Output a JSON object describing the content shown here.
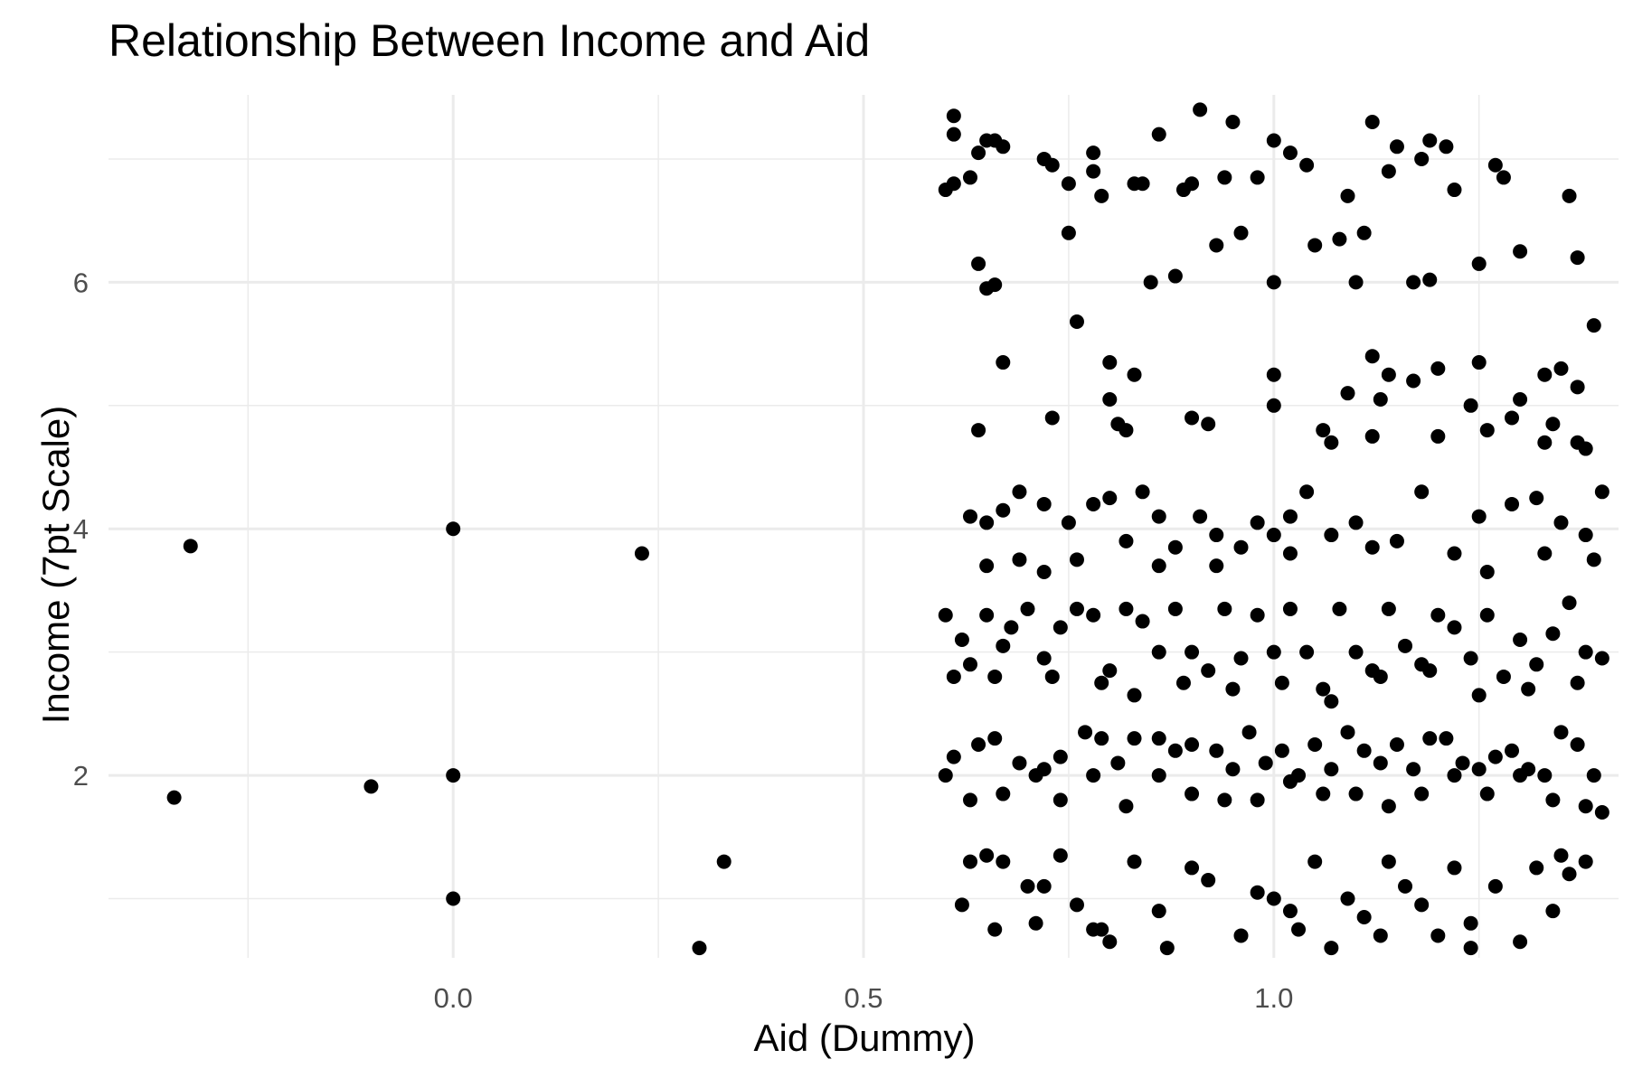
{
  "chart_data": {
    "type": "scatter",
    "title": "Relationship Between Income and Aid",
    "xlabel": "Aid (Dummy)",
    "ylabel": "Income (7pt Scale)",
    "xlim": [
      -0.42,
      1.42
    ],
    "ylim": [
      0.52,
      7.52
    ],
    "x_ticks": [
      0.0,
      0.5,
      1.0
    ],
    "x_tick_labels": [
      "0.0",
      "0.5",
      "1.0"
    ],
    "y_ticks": [
      2,
      4,
      6
    ],
    "y_tick_labels": [
      "2",
      "4",
      "6"
    ],
    "grid": true,
    "legend": "none",
    "point_color": "#000000",
    "grid_color": "#ebebeb",
    "series": [
      {
        "values": [
          [
            -0.32,
            3.86
          ],
          [
            -0.34,
            1.82
          ],
          [
            -0.1,
            1.91
          ],
          [
            0.0,
            4.0
          ],
          [
            0.0,
            2.0
          ],
          [
            0.0,
            1.0
          ],
          [
            0.23,
            3.8
          ],
          [
            0.3,
            0.6
          ],
          [
            0.33,
            1.3
          ],
          [
            0.61,
            7.35
          ],
          [
            0.61,
            7.2
          ],
          [
            0.64,
            7.05
          ],
          [
            0.65,
            7.15
          ],
          [
            0.66,
            7.15
          ],
          [
            0.67,
            7.1
          ],
          [
            0.6,
            6.75
          ],
          [
            0.61,
            6.8
          ],
          [
            0.63,
            6.85
          ],
          [
            0.72,
            7.0
          ],
          [
            0.73,
            6.95
          ],
          [
            0.75,
            6.8
          ],
          [
            0.78,
            7.05
          ],
          [
            0.78,
            6.9
          ],
          [
            0.79,
            6.7
          ],
          [
            0.83,
            6.8
          ],
          [
            0.84,
            6.8
          ],
          [
            0.86,
            7.2
          ],
          [
            0.89,
            6.75
          ],
          [
            0.9,
            6.8
          ],
          [
            0.91,
            7.4
          ],
          [
            0.94,
            6.85
          ],
          [
            0.95,
            7.3
          ],
          [
            0.98,
            6.85
          ],
          [
            1.0,
            7.15
          ],
          [
            1.02,
            7.05
          ],
          [
            1.04,
            6.95
          ],
          [
            1.09,
            6.7
          ],
          [
            1.12,
            7.3
          ],
          [
            1.14,
            6.9
          ],
          [
            1.15,
            7.1
          ],
          [
            1.18,
            7.0
          ],
          [
            1.19,
            7.15
          ],
          [
            1.21,
            7.1
          ],
          [
            1.22,
            6.75
          ],
          [
            1.27,
            6.95
          ],
          [
            1.28,
            6.85
          ],
          [
            1.36,
            6.7
          ],
          [
            0.64,
            6.15
          ],
          [
            0.65,
            5.95
          ],
          [
            0.66,
            5.98
          ],
          [
            0.75,
            6.4
          ],
          [
            0.85,
            6.0
          ],
          [
            0.88,
            6.05
          ],
          [
            0.93,
            6.3
          ],
          [
            0.96,
            6.4
          ],
          [
            1.0,
            6.0
          ],
          [
            1.05,
            6.3
          ],
          [
            1.08,
            6.35
          ],
          [
            1.1,
            6.0
          ],
          [
            1.11,
            6.4
          ],
          [
            1.17,
            6.0
          ],
          [
            1.19,
            6.02
          ],
          [
            1.25,
            6.15
          ],
          [
            1.3,
            6.25
          ],
          [
            1.37,
            6.2
          ],
          [
            0.67,
            5.35
          ],
          [
            0.76,
            5.68
          ],
          [
            0.8,
            5.35
          ],
          [
            0.83,
            5.25
          ],
          [
            1.0,
            5.25
          ],
          [
            1.09,
            5.1
          ],
          [
            1.12,
            5.4
          ],
          [
            1.14,
            5.25
          ],
          [
            1.17,
            5.2
          ],
          [
            1.2,
            5.3
          ],
          [
            1.25,
            5.35
          ],
          [
            1.3,
            5.05
          ],
          [
            1.33,
            5.25
          ],
          [
            1.35,
            5.3
          ],
          [
            1.39,
            5.65
          ],
          [
            1.37,
            5.15
          ],
          [
            0.64,
            4.8
          ],
          [
            0.73,
            4.9
          ],
          [
            0.8,
            5.05
          ],
          [
            0.81,
            4.85
          ],
          [
            0.82,
            4.8
          ],
          [
            0.9,
            4.9
          ],
          [
            0.92,
            4.85
          ],
          [
            1.0,
            5.0
          ],
          [
            1.06,
            4.8
          ],
          [
            1.07,
            4.7
          ],
          [
            1.12,
            4.75
          ],
          [
            1.13,
            5.05
          ],
          [
            1.2,
            4.75
          ],
          [
            1.24,
            5.0
          ],
          [
            1.26,
            4.8
          ],
          [
            1.29,
            4.9
          ],
          [
            1.33,
            4.7
          ],
          [
            1.34,
            4.85
          ],
          [
            1.37,
            4.7
          ],
          [
            1.38,
            4.65
          ],
          [
            0.63,
            4.1
          ],
          [
            0.65,
            4.05
          ],
          [
            0.67,
            4.15
          ],
          [
            0.69,
            4.3
          ],
          [
            0.72,
            4.2
          ],
          [
            0.75,
            4.05
          ],
          [
            0.78,
            4.2
          ],
          [
            0.8,
            4.25
          ],
          [
            0.82,
            3.9
          ],
          [
            0.84,
            4.3
          ],
          [
            0.86,
            4.1
          ],
          [
            0.88,
            3.85
          ],
          [
            0.91,
            4.1
          ],
          [
            0.93,
            3.95
          ],
          [
            0.96,
            3.85
          ],
          [
            0.98,
            4.05
          ],
          [
            1.0,
            3.95
          ],
          [
            1.02,
            4.1
          ],
          [
            1.04,
            4.3
          ],
          [
            1.07,
            3.95
          ],
          [
            1.1,
            4.05
          ],
          [
            1.12,
            3.85
          ],
          [
            1.15,
            3.9
          ],
          [
            1.18,
            4.3
          ],
          [
            1.22,
            3.8
          ],
          [
            1.25,
            4.1
          ],
          [
            1.29,
            4.2
          ],
          [
            1.32,
            4.25
          ],
          [
            1.35,
            4.05
          ],
          [
            1.38,
            3.95
          ],
          [
            1.4,
            4.3
          ],
          [
            0.65,
            3.7
          ],
          [
            0.69,
            3.75
          ],
          [
            0.72,
            3.65
          ],
          [
            0.76,
            3.75
          ],
          [
            0.86,
            3.7
          ],
          [
            0.93,
            3.7
          ],
          [
            1.02,
            3.8
          ],
          [
            1.26,
            3.65
          ],
          [
            1.33,
            3.8
          ],
          [
            1.39,
            3.75
          ],
          [
            0.6,
            3.3
          ],
          [
            0.62,
            3.1
          ],
          [
            0.63,
            2.9
          ],
          [
            0.65,
            3.3
          ],
          [
            0.67,
            3.05
          ],
          [
            0.68,
            3.2
          ],
          [
            0.7,
            3.35
          ],
          [
            0.72,
            2.95
          ],
          [
            0.74,
            3.2
          ],
          [
            0.76,
            3.35
          ],
          [
            0.78,
            3.3
          ],
          [
            0.8,
            2.85
          ],
          [
            0.82,
            3.35
          ],
          [
            0.84,
            3.25
          ],
          [
            0.86,
            3.0
          ],
          [
            0.88,
            3.35
          ],
          [
            0.9,
            3.0
          ],
          [
            0.92,
            2.85
          ],
          [
            0.94,
            3.35
          ],
          [
            0.96,
            2.95
          ],
          [
            0.98,
            3.3
          ],
          [
            1.0,
            3.0
          ],
          [
            1.02,
            3.35
          ],
          [
            1.04,
            3.0
          ],
          [
            1.06,
            2.7
          ],
          [
            1.08,
            3.35
          ],
          [
            1.1,
            3.0
          ],
          [
            1.12,
            2.85
          ],
          [
            1.14,
            3.35
          ],
          [
            1.16,
            3.05
          ],
          [
            1.18,
            2.9
          ],
          [
            1.2,
            3.3
          ],
          [
            1.22,
            3.2
          ],
          [
            1.24,
            2.95
          ],
          [
            1.26,
            3.3
          ],
          [
            1.28,
            2.8
          ],
          [
            1.3,
            3.1
          ],
          [
            1.32,
            2.9
          ],
          [
            1.34,
            3.15
          ],
          [
            1.36,
            3.4
          ],
          [
            1.38,
            3.0
          ],
          [
            1.4,
            2.95
          ],
          [
            0.61,
            2.8
          ],
          [
            0.66,
            2.8
          ],
          [
            0.73,
            2.8
          ],
          [
            0.79,
            2.75
          ],
          [
            0.83,
            2.65
          ],
          [
            0.89,
            2.75
          ],
          [
            0.95,
            2.7
          ],
          [
            1.01,
            2.75
          ],
          [
            1.07,
            2.6
          ],
          [
            1.13,
            2.8
          ],
          [
            1.19,
            2.85
          ],
          [
            1.25,
            2.65
          ],
          [
            1.31,
            2.7
          ],
          [
            1.37,
            2.75
          ],
          [
            0.61,
            2.15
          ],
          [
            0.64,
            2.25
          ],
          [
            0.66,
            2.3
          ],
          [
            0.69,
            2.1
          ],
          [
            0.72,
            2.05
          ],
          [
            0.74,
            2.15
          ],
          [
            0.77,
            2.35
          ],
          [
            0.79,
            2.3
          ],
          [
            0.81,
            2.1
          ],
          [
            0.83,
            2.3
          ],
          [
            0.86,
            2.3
          ],
          [
            0.88,
            2.2
          ],
          [
            0.9,
            2.25
          ],
          [
            0.93,
            2.2
          ],
          [
            0.95,
            2.05
          ],
          [
            0.97,
            2.35
          ],
          [
            0.99,
            2.1
          ],
          [
            1.01,
            2.2
          ],
          [
            1.03,
            2.0
          ],
          [
            1.05,
            2.25
          ],
          [
            1.07,
            2.05
          ],
          [
            1.09,
            2.35
          ],
          [
            1.11,
            2.2
          ],
          [
            1.13,
            2.1
          ],
          [
            1.15,
            2.25
          ],
          [
            1.17,
            2.05
          ],
          [
            1.19,
            2.3
          ],
          [
            1.21,
            2.3
          ],
          [
            1.23,
            2.1
          ],
          [
            1.25,
            2.05
          ],
          [
            1.27,
            2.15
          ],
          [
            1.29,
            2.2
          ],
          [
            1.31,
            2.05
          ],
          [
            1.33,
            2.0
          ],
          [
            1.35,
            2.35
          ],
          [
            1.37,
            2.25
          ],
          [
            1.39,
            2.0
          ],
          [
            0.6,
            2.0
          ],
          [
            0.63,
            1.8
          ],
          [
            0.67,
            1.85
          ],
          [
            0.71,
            2.0
          ],
          [
            0.74,
            1.8
          ],
          [
            0.78,
            2.0
          ],
          [
            0.82,
            1.75
          ],
          [
            0.86,
            2.0
          ],
          [
            0.9,
            1.85
          ],
          [
            0.94,
            1.8
          ],
          [
            0.98,
            1.8
          ],
          [
            1.02,
            1.95
          ],
          [
            1.06,
            1.85
          ],
          [
            1.1,
            1.85
          ],
          [
            1.14,
            1.75
          ],
          [
            1.18,
            1.85
          ],
          [
            1.22,
            2.0
          ],
          [
            1.26,
            1.85
          ],
          [
            1.3,
            2.0
          ],
          [
            1.34,
            1.8
          ],
          [
            1.38,
            1.75
          ],
          [
            1.4,
            1.7
          ],
          [
            0.63,
            1.3
          ],
          [
            0.65,
            1.35
          ],
          [
            0.67,
            1.3
          ],
          [
            0.7,
            1.1
          ],
          [
            0.72,
            1.1
          ],
          [
            0.74,
            1.35
          ],
          [
            0.76,
            0.95
          ],
          [
            0.78,
            0.75
          ],
          [
            0.8,
            0.65
          ],
          [
            0.83,
            1.3
          ],
          [
            0.86,
            0.9
          ],
          [
            0.9,
            1.25
          ],
          [
            0.92,
            1.15
          ],
          [
            0.96,
            0.7
          ],
          [
            0.98,
            1.05
          ],
          [
            1.0,
            1.0
          ],
          [
            1.02,
            0.9
          ],
          [
            1.05,
            1.3
          ],
          [
            1.07,
            0.6
          ],
          [
            1.09,
            1.0
          ],
          [
            1.11,
            0.85
          ],
          [
            1.14,
            1.3
          ],
          [
            1.16,
            1.1
          ],
          [
            1.18,
            0.95
          ],
          [
            1.2,
            0.7
          ],
          [
            1.22,
            1.25
          ],
          [
            1.24,
            0.8
          ],
          [
            1.27,
            1.1
          ],
          [
            1.3,
            0.65
          ],
          [
            1.32,
            1.25
          ],
          [
            1.34,
            0.9
          ],
          [
            1.36,
            1.2
          ],
          [
            1.38,
            1.3
          ],
          [
            0.62,
            0.95
          ],
          [
            0.66,
            0.75
          ],
          [
            0.71,
            0.8
          ],
          [
            0.79,
            0.75
          ],
          [
            0.87,
            0.6
          ],
          [
            1.03,
            0.75
          ],
          [
            1.13,
            0.7
          ],
          [
            1.24,
            0.6
          ],
          [
            1.35,
            1.35
          ]
        ]
      }
    ]
  }
}
